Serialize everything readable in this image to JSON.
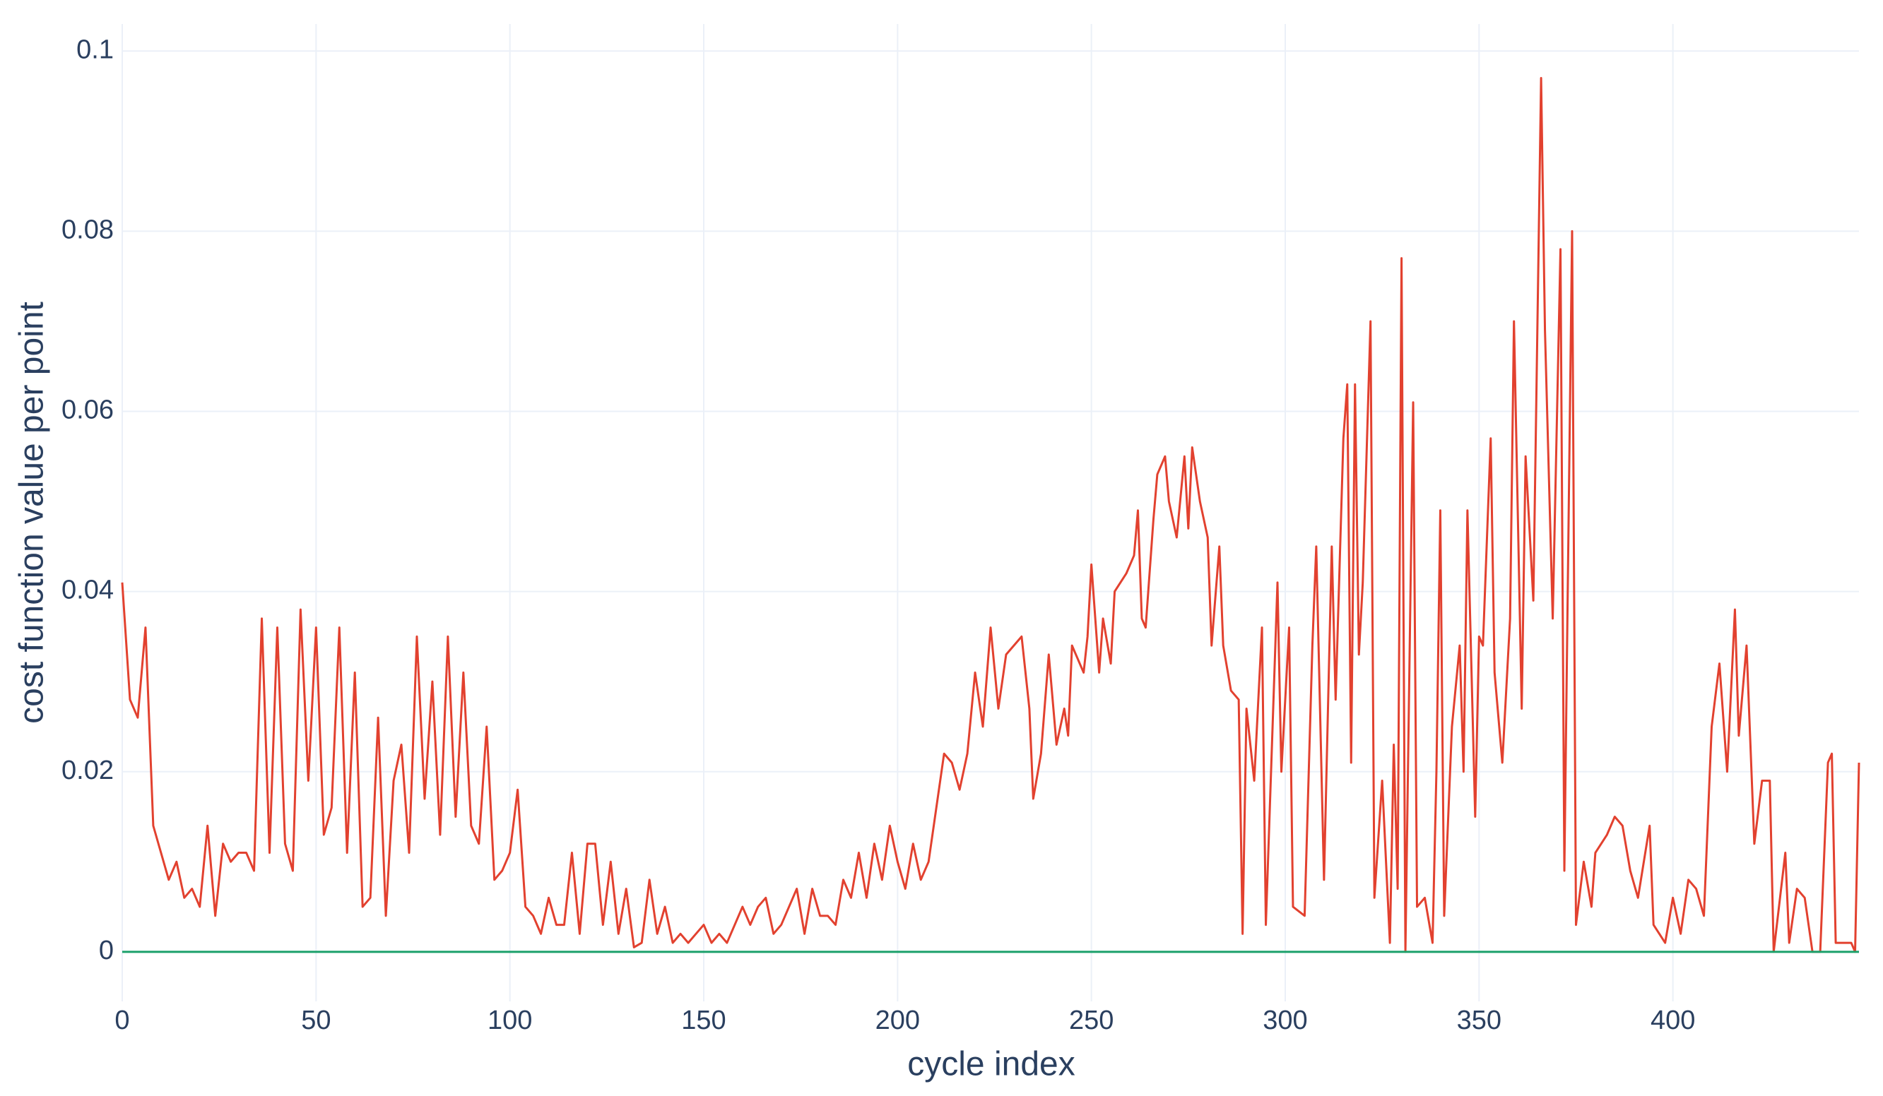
{
  "chart_data": {
    "type": "line",
    "x_label": "cycle index",
    "y_label": "cost function value per point",
    "xlim": [
      0,
      448
    ],
    "xticks": [
      0,
      50,
      100,
      150,
      200,
      250,
      300,
      350,
      400
    ],
    "ylim": [
      -0.0055,
      0.103
    ],
    "yticks": [
      0,
      0.02,
      0.04,
      0.06,
      0.08,
      0.1
    ],
    "grid": true,
    "series": [
      {
        "color": "#e2412f",
        "x": [
          0,
          2,
          4,
          6,
          8,
          10,
          12,
          14,
          16,
          18,
          20,
          22,
          24,
          26,
          28,
          30,
          32,
          34,
          36,
          38,
          40,
          42,
          44,
          46,
          48,
          50,
          52,
          54,
          56,
          58,
          60,
          62,
          64,
          66,
          68,
          70,
          72,
          74,
          76,
          78,
          80,
          82,
          84,
          86,
          88,
          90,
          92,
          94,
          96,
          98,
          100,
          102,
          104,
          106,
          108,
          110,
          112,
          114,
          116,
          118,
          120,
          122,
          124,
          126,
          128,
          130,
          132,
          134,
          136,
          138,
          140,
          142,
          144,
          146,
          148,
          150,
          152,
          154,
          156,
          158,
          160,
          162,
          164,
          166,
          168,
          170,
          172,
          174,
          176,
          178,
          180,
          182,
          184,
          186,
          188,
          190,
          192,
          194,
          196,
          198,
          200,
          202,
          204,
          206,
          208,
          210,
          212,
          214,
          216,
          218,
          220,
          222,
          224,
          226,
          228,
          230,
          232,
          234,
          235,
          237,
          239,
          241,
          243,
          244,
          245,
          248,
          249,
          250,
          252,
          253,
          255,
          256,
          259,
          261,
          262,
          263,
          264,
          266,
          267,
          269,
          270,
          272,
          274,
          275,
          276,
          278,
          280,
          281,
          283,
          284,
          286,
          288,
          289,
          290,
          292,
          294,
          295,
          298,
          299,
          301,
          302,
          305,
          307,
          308,
          310,
          312,
          313,
          315,
          316,
          317,
          318,
          319,
          320,
          322,
          323,
          325,
          327,
          328,
          329,
          330,
          331,
          333,
          334,
          336,
          338,
          339,
          340,
          341,
          343,
          345,
          346,
          347,
          349,
          350,
          351,
          353,
          354,
          356,
          358,
          359,
          361,
          362,
          364,
          366,
          367,
          369,
          371,
          372,
          374,
          375,
          377,
          379,
          380,
          383,
          385,
          387,
          389,
          391,
          394,
          395,
          398,
          400,
          402,
          404,
          406,
          408,
          410,
          412,
          414,
          416,
          417,
          419,
          421,
          423,
          425,
          426,
          429,
          430,
          432,
          434,
          436,
          438,
          440,
          441,
          442,
          444,
          446,
          447,
          448
        ],
        "values": [
          0.041,
          0.028,
          0.026,
          0.036,
          0.014,
          0.011,
          0.008,
          0.01,
          0.006,
          0.007,
          0.005,
          0.014,
          0.004,
          0.012,
          0.01,
          0.011,
          0.011,
          0.009,
          0.037,
          0.011,
          0.036,
          0.012,
          0.009,
          0.038,
          0.019,
          0.036,
          0.013,
          0.016,
          0.036,
          0.011,
          0.031,
          0.005,
          0.006,
          0.026,
          0.004,
          0.019,
          0.023,
          0.011,
          0.035,
          0.017,
          0.03,
          0.013,
          0.035,
          0.015,
          0.031,
          0.014,
          0.012,
          0.025,
          0.008,
          0.009,
          0.011,
          0.018,
          0.005,
          0.004,
          0.002,
          0.006,
          0.003,
          0.003,
          0.011,
          0.002,
          0.012,
          0.012,
          0.003,
          0.01,
          0.002,
          0.007,
          0.0005,
          0.001,
          0.008,
          0.002,
          0.005,
          0.001,
          0.002,
          0.001,
          0.002,
          0.003,
          0.001,
          0.002,
          0.001,
          0.003,
          0.005,
          0.003,
          0.005,
          0.006,
          0.002,
          0.003,
          0.005,
          0.007,
          0.002,
          0.007,
          0.004,
          0.004,
          0.003,
          0.008,
          0.006,
          0.011,
          0.006,
          0.012,
          0.008,
          0.014,
          0.01,
          0.007,
          0.012,
          0.008,
          0.01,
          0.016,
          0.022,
          0.021,
          0.018,
          0.022,
          0.031,
          0.025,
          0.036,
          0.027,
          0.033,
          0.034,
          0.035,
          0.027,
          0.017,
          0.022,
          0.033,
          0.023,
          0.027,
          0.024,
          0.034,
          0.031,
          0.035,
          0.043,
          0.031,
          0.037,
          0.032,
          0.04,
          0.042,
          0.044,
          0.049,
          0.037,
          0.036,
          0.048,
          0.053,
          0.055,
          0.05,
          0.046,
          0.055,
          0.047,
          0.056,
          0.05,
          0.046,
          0.034,
          0.045,
          0.034,
          0.029,
          0.028,
          0.002,
          0.027,
          0.019,
          0.036,
          0.003,
          0.041,
          0.02,
          0.036,
          0.005,
          0.004,
          0.034,
          0.045,
          0.008,
          0.045,
          0.028,
          0.057,
          0.063,
          0.021,
          0.063,
          0.033,
          0.041,
          0.07,
          0.006,
          0.019,
          0.001,
          0.023,
          0.007,
          0.077,
          0,
          0.061,
          0.005,
          0.006,
          0.001,
          0.02,
          0.049,
          0.004,
          0.025,
          0.034,
          0.02,
          0.049,
          0.015,
          0.035,
          0.034,
          0.057,
          0.031,
          0.021,
          0.037,
          0.07,
          0.027,
          0.055,
          0.039,
          0.097,
          0.069,
          0.037,
          0.078,
          0.009,
          0.08,
          0.003,
          0.01,
          0.005,
          0.011,
          0.013,
          0.015,
          0.014,
          0.009,
          0.006,
          0.014,
          0.003,
          0.001,
          0.006,
          0.002,
          0.008,
          0.007,
          0.004,
          0.025,
          0.032,
          0.02,
          0.038,
          0.024,
          0.034,
          0.012,
          0.019,
          0.019,
          0,
          0.011,
          0.001,
          0.007,
          0.006,
          0,
          0,
          0.021,
          0.022,
          0.001,
          0.001,
          0.001,
          0,
          0.021
        ]
      },
      {
        "color": "#1aa06a",
        "x": [
          0,
          448
        ],
        "values": [
          0,
          0
        ]
      }
    ]
  }
}
